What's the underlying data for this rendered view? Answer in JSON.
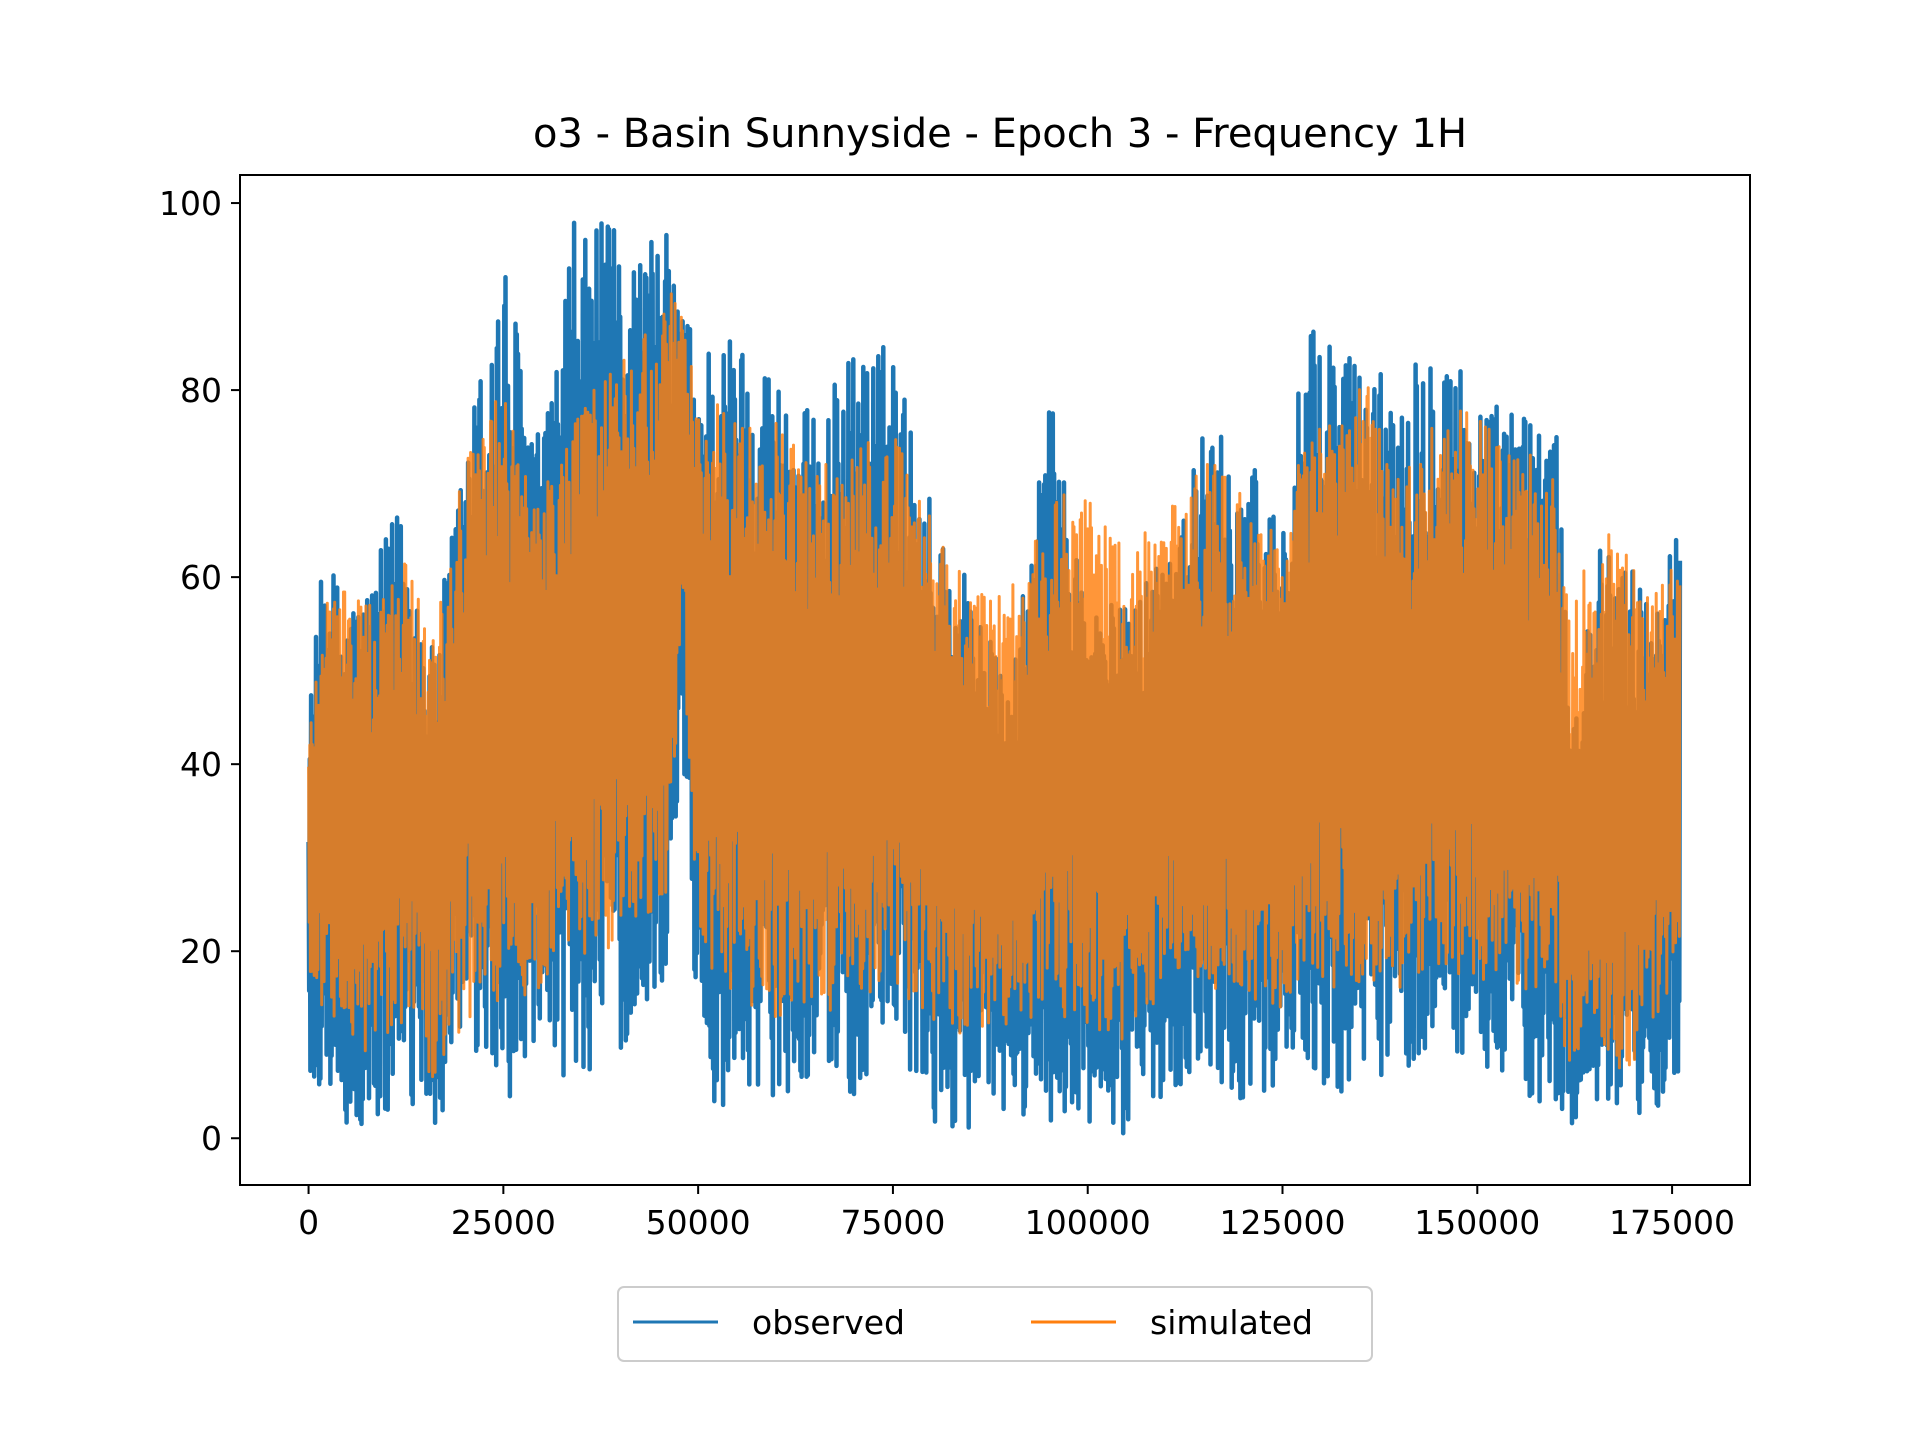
{
  "chart_data": {
    "type": "line",
    "title": "o3 - Basin Sunnyside - Epoch 3 - Frequency 1H",
    "xlabel": "",
    "ylabel": "",
    "xlim": [
      -8800,
      185000
    ],
    "ylim": [
      -5,
      103
    ],
    "xticks": [
      0,
      25000,
      50000,
      75000,
      100000,
      125000,
      150000,
      175000
    ],
    "xtick_labels": [
      "0",
      "25000",
      "50000",
      "75000",
      "100000",
      "125000",
      "150000",
      "175000"
    ],
    "yticks": [
      0,
      20,
      40,
      60,
      80,
      100
    ],
    "ytick_labels": [
      "0",
      "20",
      "40",
      "60",
      "80",
      "100"
    ],
    "grid": false,
    "legend_position": "bottom-center-outside",
    "x_max": 176000,
    "series": [
      {
        "name": "observed",
        "color": "#1f77b4",
        "envelope": {
          "x": [
            0,
            2000,
            5000,
            8000,
            12000,
            16000,
            20000,
            25000,
            30000,
            34000,
            38000,
            42000,
            46000,
            48000,
            50000,
            52000,
            56000,
            60000,
            65000,
            70000,
            75000,
            80000,
            85000,
            90000,
            95000,
            100000,
            105000,
            110000,
            115000,
            120000,
            125000,
            128000,
            132000,
            136000,
            140000,
            145000,
            150000,
            155000,
            160000,
            162000,
            165000,
            168000,
            172000,
            176000
          ],
          "high": [
            46,
            63,
            58,
            60,
            69,
            52,
            74,
            95,
            74,
            98,
            98,
            96,
            97,
            90,
            85,
            87,
            86,
            83,
            77,
            85,
            85,
            68,
            60,
            47,
            80,
            58,
            57,
            65,
            76,
            74,
            67,
            86,
            87,
            82,
            83,
            88,
            80,
            78,
            80,
            43,
            63,
            64,
            58,
            66
          ],
          "low": [
            1,
            7,
            0,
            0,
            3,
            0,
            8,
            4,
            6,
            5,
            9,
            9,
            18,
            42,
            9,
            2,
            6,
            4,
            7,
            4,
            9,
            1,
            1,
            2,
            2,
            0,
            0,
            5,
            7,
            4,
            6,
            8,
            3,
            6,
            7,
            9,
            8,
            5,
            1,
            1,
            4,
            0,
            2,
            6
          ]
        }
      },
      {
        "name": "simulated",
        "color": "#ff7f0e",
        "envelope": {
          "x": [
            0,
            2000,
            5000,
            8000,
            12000,
            16000,
            20000,
            25000,
            30000,
            34000,
            38000,
            42000,
            46000,
            48000,
            50000,
            52000,
            56000,
            60000,
            65000,
            70000,
            75000,
            80000,
            85000,
            90000,
            95000,
            100000,
            105000,
            110000,
            115000,
            120000,
            125000,
            128000,
            132000,
            136000,
            140000,
            145000,
            150000,
            155000,
            160000,
            162000,
            165000,
            168000,
            172000,
            176000
          ],
          "high": [
            44,
            61,
            60,
            57,
            63,
            56,
            74,
            80,
            71,
            76,
            85,
            84,
            91,
            89,
            80,
            79,
            76,
            77,
            72,
            74,
            76,
            66,
            59,
            60,
            69,
            69,
            63,
            68,
            73,
            69,
            67,
            77,
            76,
            83,
            70,
            80,
            77,
            74,
            72,
            56,
            65,
            65,
            58,
            62
          ],
          "low": [
            15,
            14,
            10,
            9,
            11,
            6,
            12,
            14,
            16,
            19,
            20,
            21,
            24,
            54,
            22,
            17,
            14,
            13,
            14,
            13,
            17,
            11,
            11,
            12,
            13,
            12,
            10,
            15,
            17,
            13,
            14,
            17,
            15,
            16,
            16,
            18,
            17,
            15,
            13,
            6,
            9,
            7,
            9,
            19
          ]
        }
      }
    ]
  }
}
